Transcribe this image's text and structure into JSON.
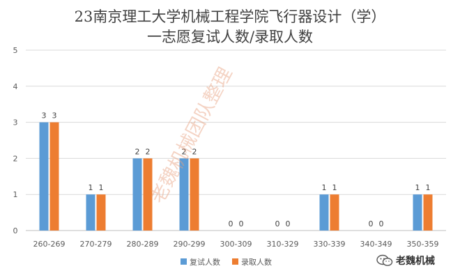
{
  "watermark": "老魏机械团队整理",
  "brand": {
    "icon": "wechat-icon",
    "label": "老魏机械"
  },
  "colors": {
    "series1": "#5b9bd5",
    "series2": "#ed7d31",
    "grid": "#d9d9d9",
    "axis": "#bfbfbf"
  },
  "chart_data": {
    "type": "bar",
    "title_lines": [
      "23南京理工大学机械工程学院飞行器设计（学）",
      "一志愿复试人数/录取人数"
    ],
    "categories": [
      "260-269",
      "270-279",
      "280-289",
      "290-299",
      "300-309",
      "310-329",
      "330-339",
      "340-349",
      "350-359"
    ],
    "series": [
      {
        "name": "复试人数",
        "values": [
          3,
          1,
          2,
          2,
          0,
          0,
          1,
          0,
          1
        ]
      },
      {
        "name": "录取人数",
        "values": [
          3,
          1,
          2,
          2,
          0,
          0,
          1,
          0,
          1
        ]
      }
    ],
    "ylim": [
      0,
      5
    ],
    "yticks": [
      0,
      1,
      2,
      3,
      4,
      5
    ],
    "grid": true,
    "data_labels": true,
    "legend_position": "bottom"
  }
}
